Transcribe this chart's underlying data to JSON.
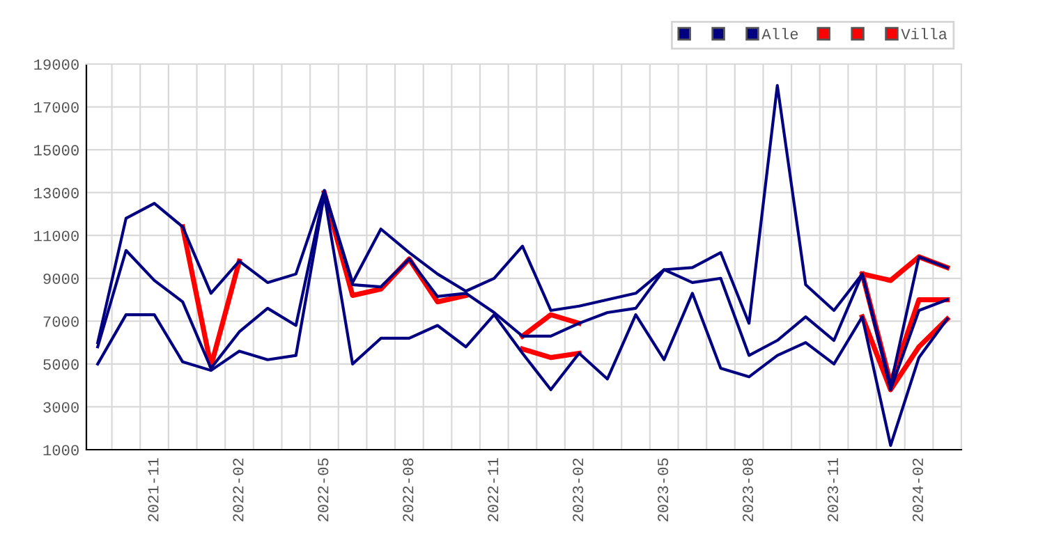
{
  "chart_data": {
    "type": "line",
    "categories": [
      null,
      null,
      "2021-11",
      null,
      null,
      "2022-02",
      null,
      null,
      "2022-05",
      null,
      null,
      "2022-08",
      null,
      null,
      "2022-11",
      null,
      null,
      "2023-02",
      null,
      null,
      "2023-05",
      null,
      null,
      "2023-08",
      null,
      null,
      "2023-11",
      null,
      null,
      "2024-02",
      null
    ],
    "series": [
      {
        "color": "#000080",
        "values": [
          6000,
          11800,
          12500,
          11400,
          8300,
          9800,
          8800,
          9200,
          13100,
          8800,
          11300,
          10200,
          9200,
          8400,
          9000,
          10500,
          7500,
          7700,
          8000,
          8300,
          9400,
          9500,
          10200,
          6900,
          18000,
          8700,
          7500,
          9200,
          4000,
          10000,
          9500
        ]
      },
      {
        "color": "#000080",
        "values": [
          5000,
          7300,
          7300,
          5100,
          4700,
          5600,
          5200,
          5400,
          12900,
          5000,
          6200,
          6200,
          6800,
          5800,
          7300,
          5500,
          3800,
          5500,
          4300,
          7300,
          5200,
          8300,
          4800,
          4400,
          5400,
          6000,
          5000,
          7200,
          1200,
          5300,
          7100
        ]
      },
      {
        "name": "Alle",
        "color": "#000080",
        "values": [
          5800,
          10300,
          8900,
          7900,
          4800,
          6500,
          7600,
          6800,
          13000,
          8700,
          8600,
          9900,
          8150,
          8300,
          7400,
          6300,
          6300,
          6900,
          7400,
          7600,
          9400,
          8800,
          9000,
          5400,
          6100,
          7200,
          6100,
          9200,
          3800,
          7500,
          8000
        ]
      },
      {
        "color": "#ff0000",
        "values": [
          null,
          null,
          null,
          null,
          null,
          null,
          null,
          null,
          null,
          null,
          null,
          null,
          null,
          null,
          null,
          null,
          null,
          null,
          null,
          null,
          null,
          null,
          null,
          null,
          null,
          null,
          null,
          9200,
          8900,
          10000,
          9500
        ]
      },
      {
        "color": "#ff0000",
        "values": [
          null,
          null,
          null,
          null,
          null,
          null,
          null,
          null,
          null,
          null,
          null,
          null,
          null,
          null,
          null,
          5700,
          5300,
          5500,
          null,
          null,
          null,
          null,
          null,
          null,
          null,
          null,
          null,
          7200,
          3800,
          5800,
          7100
        ]
      },
      {
        "name": "Villa",
        "color": "#ff0000",
        "values": [
          null,
          null,
          null,
          11400,
          4900,
          9800,
          null,
          null,
          13000,
          8200,
          8500,
          9900,
          7900,
          8200,
          null,
          6300,
          7300,
          6900,
          null,
          null,
          null,
          null,
          null,
          null,
          null,
          null,
          null,
          9200,
          4100,
          8000,
          8000
        ]
      }
    ],
    "ylim": [
      1000,
      19000
    ],
    "yticks": [
      1000,
      3000,
      5000,
      7000,
      9000,
      11000,
      13000,
      15000,
      17000,
      19000
    ],
    "grid": true,
    "legend": "top right",
    "marker": "none",
    "line_style": "solid"
  }
}
